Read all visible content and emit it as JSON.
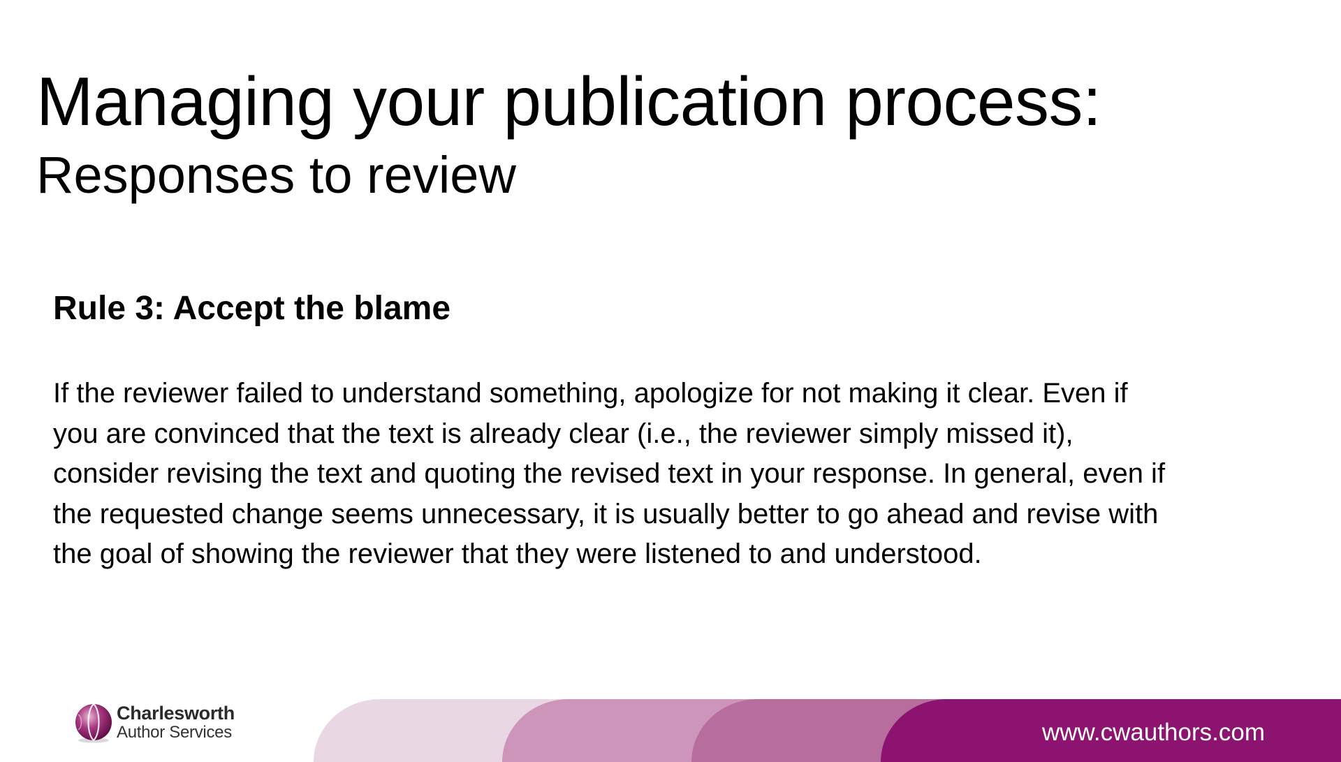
{
  "slide": {
    "title": "Managing your publication process:",
    "subtitle": "Responses to review"
  },
  "rule": {
    "heading": "Rule 3: Accept the blame",
    "body_lines": [
      "If the reviewer failed to understand something, apologize for not making it clear. Even if",
      "you are convinced that the text is already clear (i.e., the reviewer simply missed it),",
      "consider revising the text and quoting the revised text in your response. In general, even if",
      "the requested change seems unnecessary, it is usually better to go ahead and revise with",
      "the goal of showing the reviewer that they were listened to and understood."
    ]
  },
  "footer": {
    "logo_name": "Charlesworth",
    "logo_tagline": "Author Services",
    "website": "www.cwauthors.com",
    "logo_icon": "charlesworth-sphere-logo",
    "colors": {
      "band_lightest": "#ead7e4",
      "band_light": "#cd95ba",
      "band_medium": "#b76e9e",
      "band_dark": "#8c1470",
      "url_text": "#ffffff"
    }
  }
}
